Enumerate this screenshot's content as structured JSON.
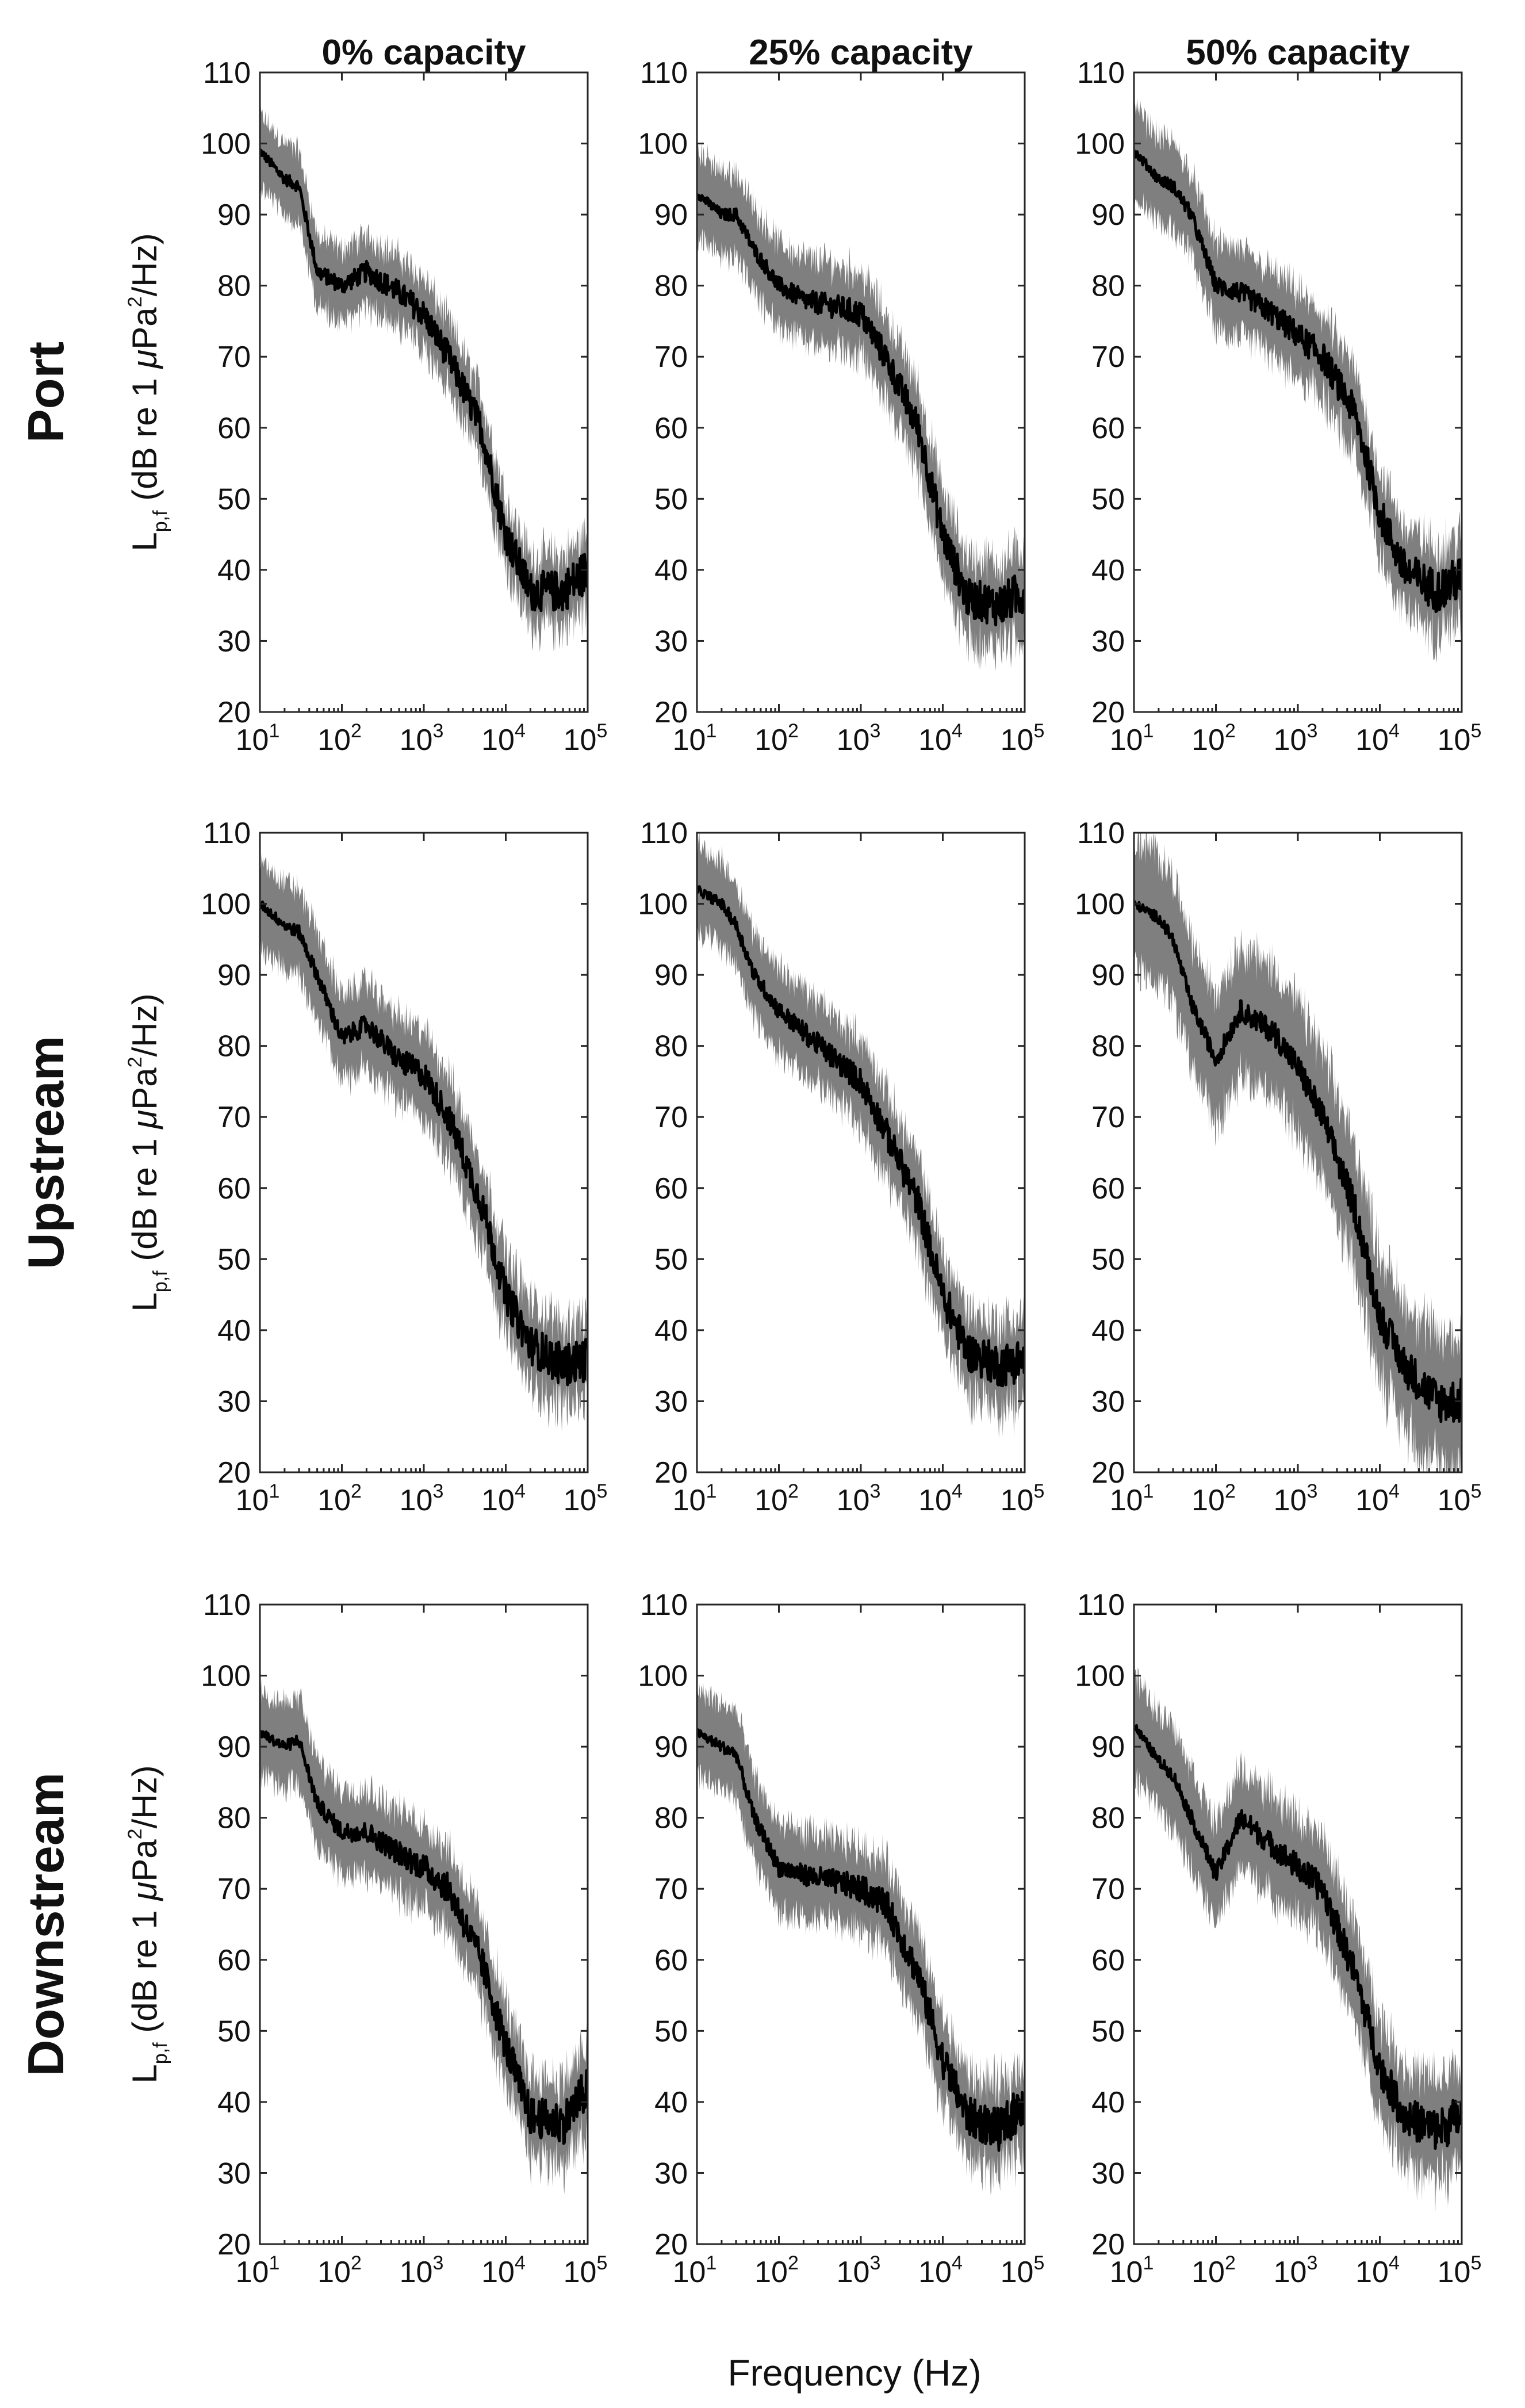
{
  "figure": {
    "column_titles": [
      "0% capacity",
      "25% capacity",
      "50% capacity"
    ],
    "row_titles": [
      "Port",
      "Upstream",
      "Downstream"
    ],
    "ylabel": {
      "base": "L",
      "sub": "p,f",
      "pre": " (dB re 1 ",
      "mu": "μ",
      "post": "Pa",
      "sup": "2",
      "tail": "/Hz)"
    },
    "xlabel": "Frequency (Hz)"
  },
  "chart_data": {
    "type": "line",
    "layout": "3x3 small multiples",
    "x_scale": "log",
    "xlim": [
      10,
      100000
    ],
    "ylim": [
      20,
      110
    ],
    "x_ticks": [
      {
        "base": "10",
        "exp": "1"
      },
      {
        "base": "10",
        "exp": "2"
      },
      {
        "base": "10",
        "exp": "3"
      },
      {
        "base": "10",
        "exp": "4"
      },
      {
        "base": "10",
        "exp": "5"
      }
    ],
    "y_ticks": [
      "20",
      "30",
      "40",
      "50",
      "60",
      "70",
      "80",
      "90",
      "100",
      "110"
    ],
    "style": {
      "mean_color": "#000000",
      "band_color": "#7f7f7f"
    },
    "grid": false,
    "legend": "none",
    "series_description": "black line = mean spectrum; grey band = spread",
    "panels": [
      {
        "row": "Port",
        "column": "0% capacity",
        "x": [
          10,
          20,
          30,
          50,
          100,
          200,
          500,
          1000,
          2000,
          5000,
          10000,
          20000,
          50000,
          100000
        ],
        "y": [
          99,
          95,
          94,
          82,
          80,
          82,
          79,
          76,
          70,
          60,
          45,
          37,
          37,
          40
        ],
        "band_halfwidth": 5
      },
      {
        "row": "Port",
        "column": "25% capacity",
        "x": [
          10,
          20,
          30,
          50,
          100,
          200,
          500,
          1000,
          2000,
          5000,
          10000,
          20000,
          50000,
          100000
        ],
        "y": [
          93,
          90,
          90,
          85,
          80,
          78,
          77,
          76,
          70,
          60,
          45,
          36,
          35,
          37
        ],
        "band_halfwidth": 6
      },
      {
        "row": "Port",
        "column": "50% capacity",
        "x": [
          10,
          20,
          30,
          50,
          100,
          200,
          500,
          1000,
          2000,
          5000,
          10000,
          20000,
          50000,
          100000
        ],
        "y": [
          99,
          95,
          94,
          90,
          80,
          79,
          76,
          73,
          70,
          62,
          48,
          40,
          37,
          39
        ],
        "band_halfwidth": 6
      },
      {
        "row": "Upstream",
        "column": "0% capacity",
        "x": [
          10,
          20,
          30,
          50,
          100,
          200,
          500,
          1000,
          2000,
          5000,
          10000,
          20000,
          50000,
          100000
        ],
        "y": [
          100,
          97,
          96,
          90,
          81,
          83,
          78,
          76,
          70,
          58,
          45,
          38,
          35,
          36
        ],
        "band_halfwidth": 6
      },
      {
        "row": "Upstream",
        "column": "25% capacity",
        "x": [
          10,
          20,
          30,
          50,
          100,
          200,
          500,
          1000,
          2000,
          5000,
          10000,
          20000,
          50000,
          100000
        ],
        "y": [
          102,
          100,
          97,
          90,
          85,
          82,
          78,
          75,
          68,
          58,
          45,
          37,
          35,
          36
        ],
        "band_halfwidth": 6
      },
      {
        "row": "Upstream",
        "column": "50% capacity",
        "x": [
          10,
          20,
          30,
          50,
          100,
          200,
          500,
          1000,
          2000,
          5000,
          10000,
          20000,
          50000,
          100000
        ],
        "y": [
          100,
          98,
          95,
          86,
          78,
          85,
          82,
          77,
          70,
          57,
          42,
          35,
          30,
          30
        ],
        "band_halfwidth": 9
      },
      {
        "row": "Downstream",
        "column": "0% capacity",
        "x": [
          10,
          20,
          30,
          50,
          100,
          200,
          500,
          1000,
          2000,
          5000,
          10000,
          20000,
          50000,
          100000
        ],
        "y": [
          92,
          90,
          91,
          82,
          78,
          78,
          75,
          73,
          70,
          60,
          48,
          38,
          37,
          42
        ],
        "band_halfwidth": 6
      },
      {
        "row": "Downstream",
        "column": "25% capacity",
        "x": [
          10,
          20,
          30,
          50,
          100,
          200,
          500,
          1000,
          2000,
          5000,
          10000,
          20000,
          50000,
          100000
        ],
        "y": [
          92,
          90,
          89,
          80,
          73,
          72,
          71,
          70,
          68,
          58,
          46,
          38,
          36,
          40
        ],
        "band_halfwidth": 6
      },
      {
        "row": "Downstream",
        "column": "50% capacity",
        "x": [
          10,
          20,
          30,
          50,
          100,
          200,
          500,
          1000,
          2000,
          5000,
          10000,
          20000,
          50000,
          100000
        ],
        "y": [
          93,
          88,
          86,
          80,
          72,
          80,
          76,
          73,
          70,
          58,
          45,
          38,
          36,
          38
        ],
        "band_halfwidth": 7
      }
    ]
  }
}
